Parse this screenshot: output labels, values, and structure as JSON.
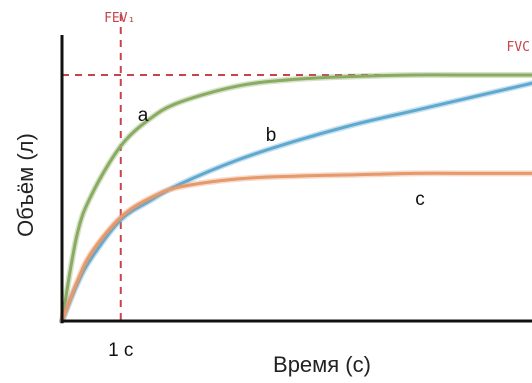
{
  "chart_data": {
    "type": "line",
    "xlabel": "Время (с)",
    "ylabel": "Объём (л)",
    "x_ticks": [
      {
        "value": 1,
        "label": "1 с"
      }
    ],
    "xlim": [
      0,
      8
    ],
    "ylim": [
      0,
      1
    ],
    "grid": false,
    "reference_lines": [
      {
        "label": "FEV₁",
        "orientation": "vertical",
        "x": 1,
        "color": "#c8434a"
      },
      {
        "label": "FVC",
        "orientation": "horizontal",
        "y": 0.9,
        "color": "#c8434a"
      }
    ],
    "series": [
      {
        "name": "a",
        "color": "#8aab62",
        "x": [
          0,
          0.25,
          0.5,
          1,
          1.5,
          2,
          3,
          4,
          5,
          6,
          7,
          8
        ],
        "y": [
          0,
          0.31,
          0.46,
          0.64,
          0.74,
          0.8,
          0.86,
          0.885,
          0.895,
          0.9,
          0.9,
          0.9
        ]
      },
      {
        "name": "b",
        "color": "#5fa8cf",
        "x": [
          0,
          0.25,
          0.5,
          1,
          1.5,
          2,
          3,
          4,
          5,
          6,
          7,
          8
        ],
        "y": [
          0,
          0.13,
          0.23,
          0.37,
          0.44,
          0.5,
          0.59,
          0.66,
          0.72,
          0.77,
          0.82,
          0.87
        ]
      },
      {
        "name": "c",
        "color": "#e6996a",
        "x": [
          0,
          0.25,
          0.5,
          1,
          1.5,
          2,
          3,
          4,
          5,
          6,
          7,
          8
        ],
        "y": [
          0,
          0.14,
          0.25,
          0.38,
          0.45,
          0.49,
          0.52,
          0.53,
          0.535,
          0.54,
          0.54,
          0.54
        ]
      }
    ]
  }
}
